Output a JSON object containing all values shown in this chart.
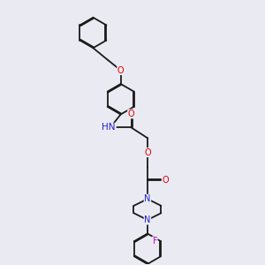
{
  "background_color": "#eaeaf2",
  "bond_color": "#1a1a1a",
  "atom_colors": {
    "O": "#dd0000",
    "N": "#2222cc",
    "F": "#cc00cc",
    "C": "#1a1a1a"
  },
  "lw": 1.3,
  "dbo": 0.035,
  "fs": 7.0,
  "xlim": [
    0,
    10
  ],
  "ylim": [
    0,
    10
  ]
}
